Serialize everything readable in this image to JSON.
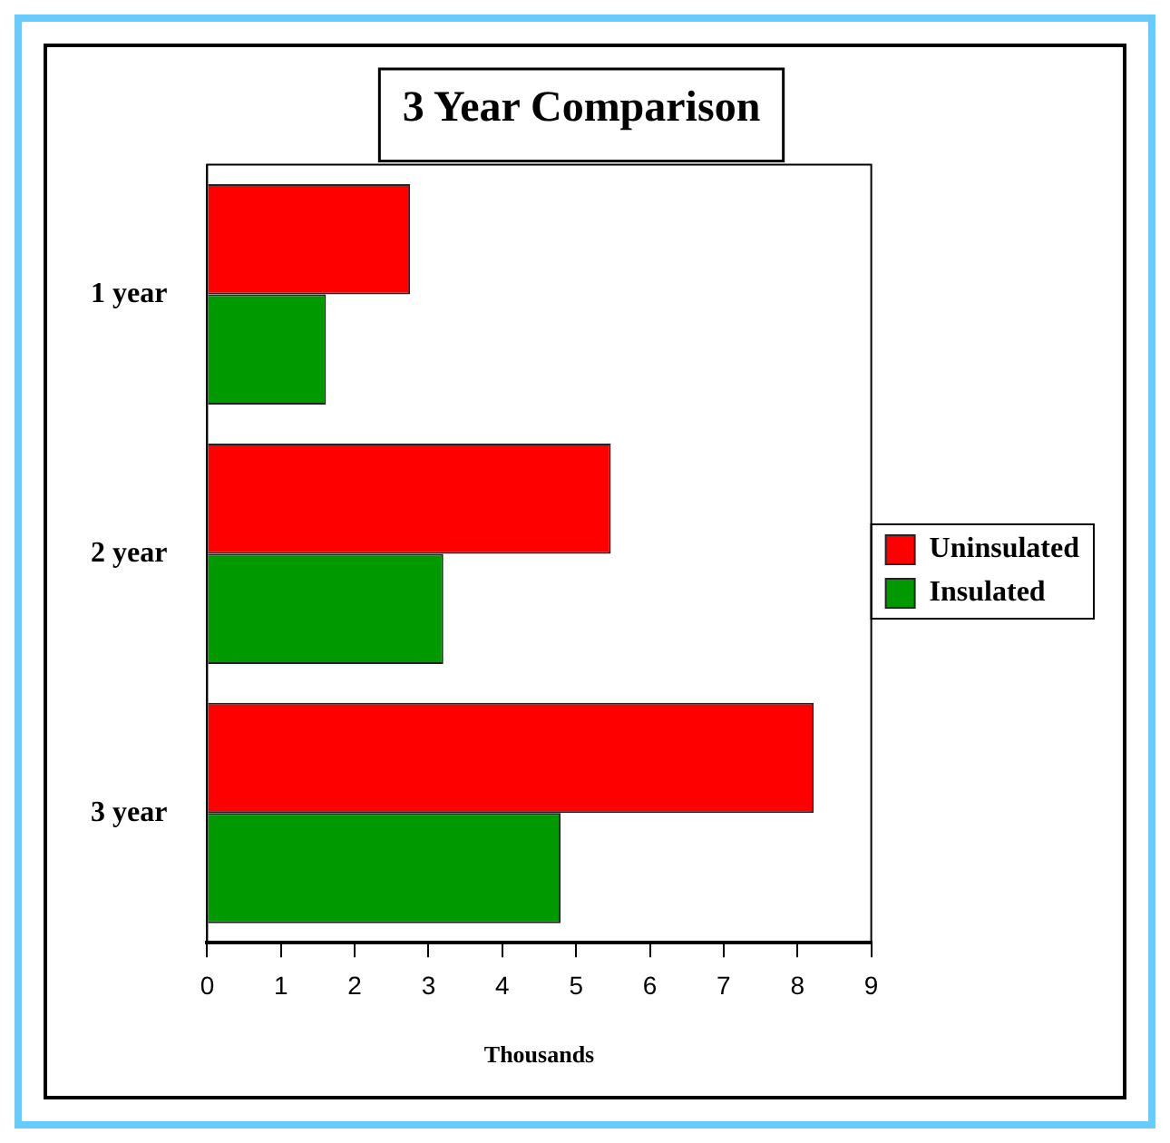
{
  "chart_data": {
    "type": "bar",
    "orientation": "horizontal",
    "title": "3 Year Comparison",
    "xlabel": "Thousands",
    "categories": [
      "1 year",
      "2 year",
      "3 year"
    ],
    "series": [
      {
        "name": "Uninsulated",
        "color": "#ff0000",
        "values": [
          2.75,
          5.47,
          8.22
        ]
      },
      {
        "name": "Insulated",
        "color": "#009900",
        "values": [
          1.61,
          3.2,
          4.79
        ]
      }
    ],
    "xlim": [
      0,
      9
    ],
    "xticks": [
      0,
      1,
      2,
      3,
      4,
      5,
      6,
      7,
      8,
      9
    ],
    "grid": false,
    "legend": "right"
  }
}
